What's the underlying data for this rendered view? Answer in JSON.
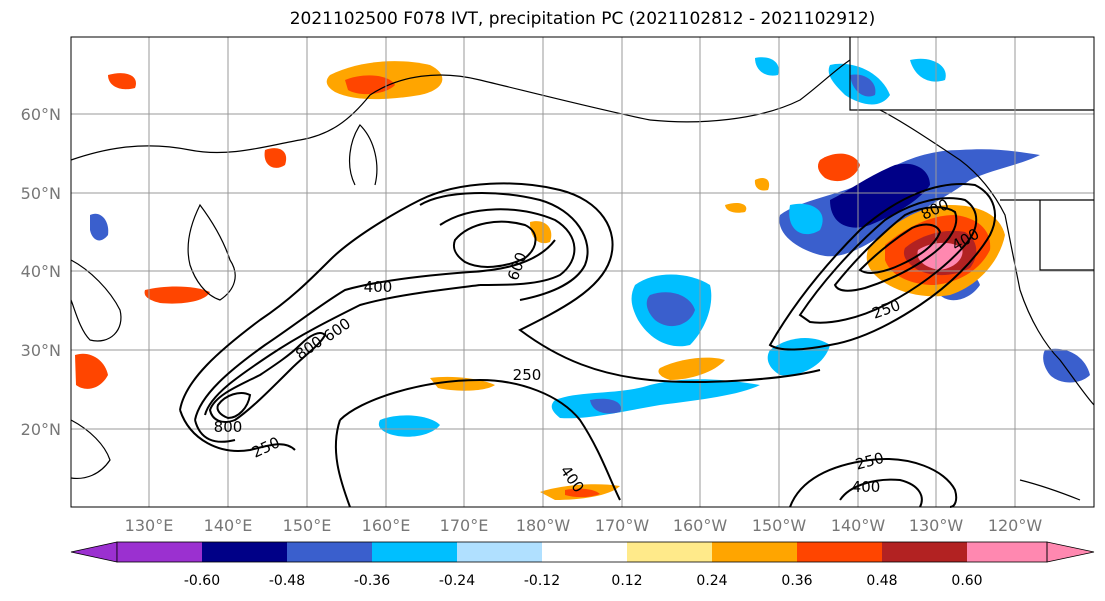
{
  "title": "2021102500 F078 IVT, precipitation PC (2021102812 - 2021102912)",
  "lat_labels": [
    "60°N",
    "50°N",
    "40°N",
    "30°N",
    "20°N"
  ],
  "lon_labels": [
    "130°E",
    "140°E",
    "150°E",
    "160°E",
    "170°E",
    "180°W",
    "170°W",
    "160°W",
    "150°W",
    "140°W",
    "130°W",
    "120°W"
  ],
  "contour_labels": {
    "c400_west": "400",
    "c800_a": "800",
    "c600_a": "600",
    "c800_b": "800",
    "c250_west": "250",
    "c600_north": "600",
    "c250_center": "250",
    "c400_south": "400",
    "c800_east": "800",
    "c400_east": "400",
    "c250_east": "250",
    "c250_se": "250",
    "c400_se": "400"
  },
  "colorbar": {
    "ticks": [
      "-0.60",
      "-0.48",
      "-0.36",
      "-0.24",
      "-0.12",
      "0.12",
      "0.24",
      "0.36",
      "0.48",
      "0.60"
    ],
    "colors": [
      "#9b30d0",
      "#000087",
      "#3a5fcd",
      "#00bfff",
      "#b0e0ff",
      "#ffffff",
      "#ffea8a",
      "#ffa500",
      "#ff4500",
      "#b22222",
      "#ff88b0"
    ]
  },
  "palette": {
    "neg_1": "#000087",
    "neg_2": "#3a5fcd",
    "neg_3": "#00bfff",
    "neg_4": "#b0e0ff",
    "pos_1": "#ffea8a",
    "pos_2": "#ffa500",
    "pos_3": "#ff4500",
    "pos_4": "#b22222",
    "pos_5": "#ff88b0"
  }
}
